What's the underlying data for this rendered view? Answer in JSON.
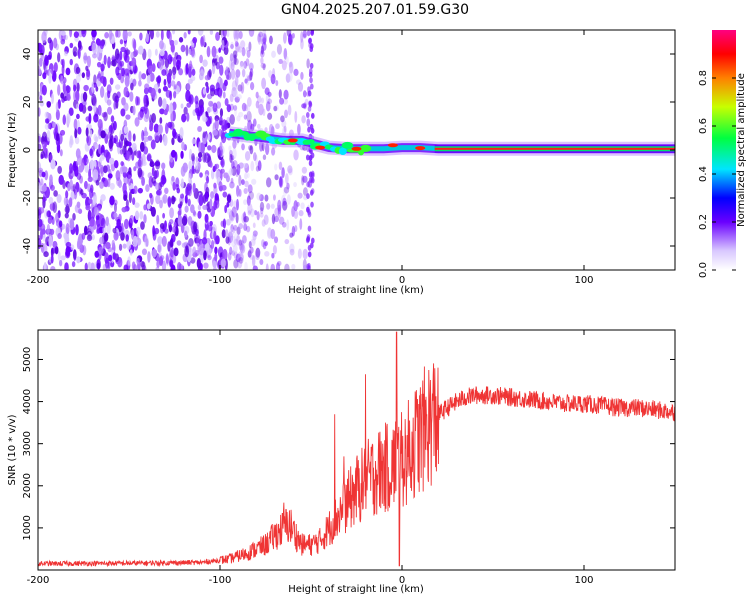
{
  "title": "GN04.2025.207.01.59.G30",
  "chart_data": [
    {
      "type": "heatmap",
      "xlabel": "Height of straight line (km)",
      "ylabel": "Frequency (Hz)",
      "xlim": [
        -200,
        150
      ],
      "ylim": [
        -50,
        50
      ],
      "xticks": [
        "-200",
        "-100",
        "0",
        "100"
      ],
      "yticks": [
        "-40",
        "-20",
        "0",
        "20",
        "40"
      ],
      "description_ridge": {
        "x": [
          -95,
          -85,
          -75,
          -65,
          -55,
          -50,
          -45,
          -40,
          -30,
          -20,
          -10,
          0,
          10,
          20,
          50,
          100,
          150
        ],
        "freq": [
          7,
          6,
          5,
          4,
          4,
          3,
          2,
          1,
          0.5,
          0.5,
          0.5,
          1,
          1,
          0.5,
          0.5,
          0.5,
          0.5
        ]
      },
      "colorbar": {
        "label": "Normalized spectral amplitude",
        "range": [
          0.0,
          1.0
        ],
        "ticks": [
          "0.0",
          "0.2",
          "0.4",
          "0.6",
          "0.8"
        ]
      }
    },
    {
      "type": "line",
      "xlabel": "Height of straight line (km)",
      "ylabel": "SNR (10 * v/v)",
      "xlim": [
        -200,
        150
      ],
      "ylim": [
        0,
        5700
      ],
      "xticks": [
        "-200",
        "-100",
        "0",
        "100"
      ],
      "yticks": [
        "1000",
        "2000",
        "3000",
        "4000",
        "5000"
      ],
      "color": "#ef3434",
      "envelope": {
        "x": [
          -200,
          -150,
          -110,
          -95,
          -85,
          -75,
          -68,
          -62,
          -58,
          -55,
          -50,
          -45,
          -40,
          -35,
          -30,
          -25,
          -20,
          -15,
          -10,
          -5,
          0,
          5,
          10,
          15,
          20,
          25,
          30,
          35,
          40,
          50,
          60,
          70,
          80,
          90,
          100,
          110,
          120,
          130,
          140,
          150
        ],
        "y": [
          150,
          160,
          180,
          260,
          400,
          600,
          900,
          1100,
          800,
          600,
          600,
          700,
          1000,
          1300,
          1600,
          1900,
          2100,
          2300,
          2400,
          2500,
          2600,
          2900,
          3200,
          3500,
          3700,
          3850,
          4000,
          4100,
          4150,
          4150,
          4100,
          4050,
          4000,
          3950,
          3950,
          3900,
          3850,
          3850,
          3800,
          3750
        ]
      },
      "spikes": [
        {
          "x": -65,
          "y": 1600
        },
        {
          "x": -37,
          "y": 3700
        },
        {
          "x": -32,
          "y": 2700
        },
        {
          "x": -20,
          "y": 4650
        },
        {
          "x": -3,
          "y": 5650
        }
      ]
    }
  ]
}
